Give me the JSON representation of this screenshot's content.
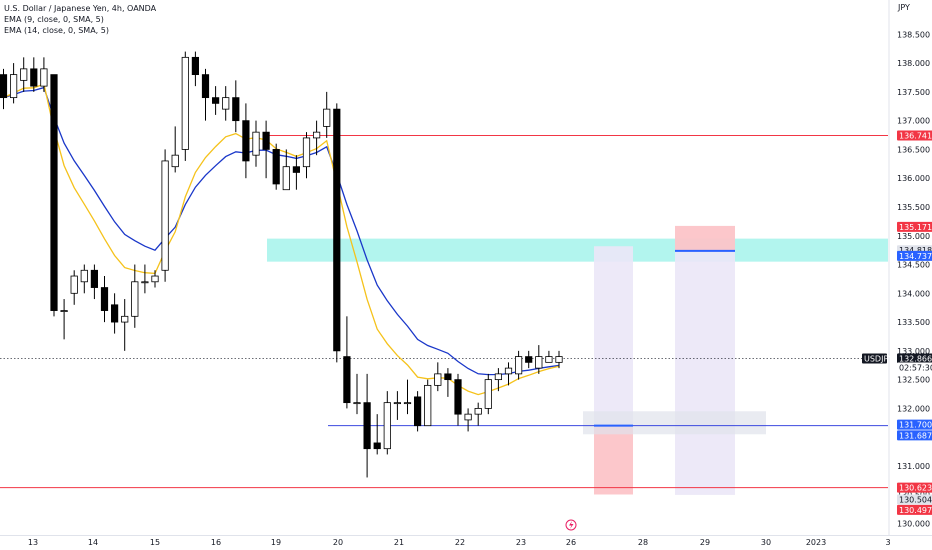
{
  "header": {
    "symbol_line": "U.S. Dollar / Japanese Yen, 4h, OANDA",
    "indicators": [
      "EMA (9, close, 0, SMA, 5)",
      "EMA (14, close, 0, SMA, 5)"
    ]
  },
  "chart_data": {
    "type": "candlestick",
    "title": "U.S. Dollar / Japanese Yen, 4h, OANDA",
    "currency_label": "JPY",
    "ylim": [
      129.9,
      138.95
    ],
    "y_ticks": [
      "138.500",
      "138.000",
      "137.500",
      "137.000",
      "136.500",
      "136.000",
      "135.500",
      "135.000",
      "134.500",
      "134.000",
      "133.500",
      "133.000",
      "132.500",
      "132.000",
      "131.500",
      "131.000",
      "130.500",
      "130.000"
    ],
    "x_ticks": [
      "13",
      "14",
      "15",
      "16",
      "19",
      "20",
      "21",
      "22",
      "23",
      "26",
      "28",
      "29",
      "30",
      "2023",
      "3"
    ],
    "grid": false,
    "candles": [
      [
        137.8,
        137.4,
        137.9,
        137.2
      ],
      [
        137.4,
        137.8,
        138.0,
        137.3
      ],
      [
        137.7,
        137.9,
        138.1,
        137.5
      ],
      [
        137.9,
        137.6,
        138.1,
        137.5
      ],
      [
        137.6,
        137.9,
        138.1,
        137.5
      ],
      [
        137.8,
        133.7,
        137.8,
        133.6
      ],
      [
        133.7,
        133.7,
        133.9,
        133.2
      ],
      [
        134.0,
        134.3,
        134.4,
        133.8
      ],
      [
        134.2,
        134.4,
        134.5,
        134.0
      ],
      [
        134.4,
        134.1,
        134.5,
        133.9
      ],
      [
        134.1,
        133.7,
        134.3,
        133.5
      ],
      [
        133.8,
        133.5,
        134.0,
        133.3
      ],
      [
        133.5,
        133.6,
        133.9,
        133.0
      ],
      [
        133.6,
        134.2,
        134.5,
        133.4
      ],
      [
        134.2,
        134.2,
        134.5,
        134.0
      ],
      [
        134.2,
        134.3,
        134.4,
        134.1
      ],
      [
        134.4,
        136.3,
        136.5,
        134.2
      ],
      [
        136.2,
        136.4,
        136.9,
        136.1
      ],
      [
        136.5,
        138.1,
        138.2,
        136.3
      ],
      [
        138.1,
        137.8,
        138.2,
        137.6
      ],
      [
        137.8,
        137.4,
        137.9,
        137.0
      ],
      [
        137.4,
        137.3,
        137.6,
        137.1
      ],
      [
        137.2,
        137.4,
        137.6,
        137.0
      ],
      [
        137.4,
        137.0,
        137.7,
        136.8
      ],
      [
        137.0,
        136.3,
        137.3,
        136.0
      ],
      [
        136.4,
        136.8,
        137.0,
        136.2
      ],
      [
        136.8,
        136.5,
        137.0,
        136.0
      ],
      [
        136.5,
        135.9,
        136.6,
        135.8
      ],
      [
        135.8,
        136.2,
        136.5,
        135.8
      ],
      [
        136.2,
        136.1,
        136.4,
        135.8
      ],
      [
        136.2,
        136.7,
        136.8,
        136.0
      ],
      [
        136.7,
        136.8,
        137.0,
        136.4
      ],
      [
        136.9,
        137.2,
        137.5,
        136.7
      ],
      [
        137.2,
        133.0,
        137.3,
        132.8
      ],
      [
        132.9,
        132.1,
        133.6,
        132.0
      ],
      [
        132.1,
        132.1,
        132.6,
        131.9
      ],
      [
        132.1,
        131.3,
        132.6,
        130.8
      ],
      [
        131.4,
        131.3,
        131.9,
        131.2
      ],
      [
        131.3,
        132.1,
        132.3,
        131.2
      ],
      [
        132.1,
        132.1,
        132.3,
        131.8
      ],
      [
        132.1,
        132.1,
        132.5,
        131.9
      ],
      [
        132.2,
        131.7,
        132.3,
        131.6
      ],
      [
        131.7,
        132.4,
        132.5,
        131.7
      ],
      [
        132.4,
        132.6,
        132.8,
        132.3
      ],
      [
        132.6,
        132.5,
        132.7,
        132.2
      ],
      [
        132.5,
        131.9,
        132.6,
        131.7
      ],
      [
        131.8,
        131.9,
        132.0,
        131.6
      ],
      [
        131.9,
        132.0,
        132.1,
        131.7
      ],
      [
        132.0,
        132.5,
        132.6,
        131.9
      ],
      [
        132.5,
        132.6,
        132.7,
        132.3
      ],
      [
        132.6,
        132.7,
        132.8,
        132.4
      ],
      [
        132.6,
        132.9,
        133.0,
        132.5
      ],
      [
        132.9,
        132.8,
        133.0,
        132.7
      ],
      [
        132.7,
        132.9,
        133.1,
        132.6
      ],
      [
        132.8,
        132.9,
        133.0,
        132.8
      ],
      [
        132.8,
        132.9,
        133.0,
        132.7
      ]
    ],
    "ema_9_color": "#f5c21b",
    "ema_14_color": "#1a37c9",
    "up_color": "#ffffff",
    "down_color": "#000000",
    "horizontal_lines": [
      {
        "price": 136.741,
        "color": "#f23645"
      },
      {
        "price": 130.623,
        "color": "#f23645"
      },
      {
        "price": 131.7,
        "color": "#3b49df"
      }
    ],
    "zones": [
      {
        "top": 134.95,
        "bottom": 134.55,
        "color": "#b2f5ee"
      }
    ],
    "positions": [
      {
        "entry": 131.7,
        "stop": 130.504,
        "target": 134.818,
        "stop_color": "#fcc4c8",
        "target_color": "#ebe7f7"
      },
      {
        "entry": 134.737,
        "stop": 135.171,
        "target": 130.497,
        "stop_color": "#fcc4c8",
        "target_color": "#ebe7f7"
      }
    ],
    "price_labels": [
      {
        "text": "136.741",
        "bg": "#f23645",
        "fg": "#ffffff"
      },
      {
        "text": "135.171",
        "bg": "#f23645",
        "fg": "#ffffff"
      },
      {
        "text": "134.818",
        "bg": "#e0e3eb",
        "fg": "#131722"
      },
      {
        "text": "134.737",
        "bg": "#2962ff",
        "fg": "#ffffff"
      },
      {
        "text": "132.866",
        "bg": "#131722",
        "fg": "#ffffff"
      },
      {
        "text": "02:57:30",
        "bg": "#ffffff",
        "fg": "#131722"
      },
      {
        "text": "131.700",
        "bg": "#2962ff",
        "fg": "#ffffff"
      },
      {
        "text": "131.687",
        "bg": "#2962ff",
        "fg": "#ffffff"
      },
      {
        "text": "130.623",
        "bg": "#f23645",
        "fg": "#ffffff"
      },
      {
        "text": "130.504",
        "bg": "#e0e3eb",
        "fg": "#131722"
      },
      {
        "text": "130.497",
        "bg": "#f23645",
        "fg": "#ffffff"
      }
    ],
    "symbol_tag": "USDJPY",
    "last_price": 132.866
  }
}
